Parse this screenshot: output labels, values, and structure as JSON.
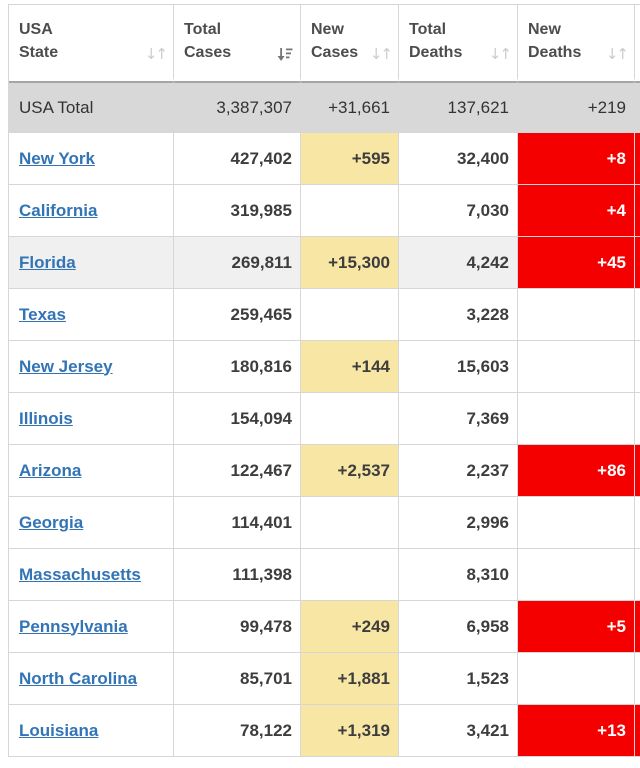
{
  "table": {
    "columns": [
      {
        "id": "state",
        "line1": "USA",
        "line2": "State",
        "sort": "inactive"
      },
      {
        "id": "total_cases",
        "line1": "Total",
        "line2": "Cases",
        "sort": "active-desc"
      },
      {
        "id": "new_cases",
        "line1": "New",
        "line2": "Cases",
        "sort": "inactive"
      },
      {
        "id": "total_deaths",
        "line1": "Total",
        "line2": "Deaths",
        "sort": "inactive"
      },
      {
        "id": "new_deaths",
        "line1": "New",
        "line2": "Deaths",
        "sort": "inactive"
      }
    ],
    "total_row": {
      "label": "USA Total",
      "total_cases": "3,387,307",
      "new_cases": "+31,661",
      "total_deaths": "137,621",
      "new_deaths": "+219"
    },
    "rows": [
      {
        "state": "New York",
        "total_cases": "427,402",
        "new_cases": "+595",
        "total_deaths": "32,400",
        "new_deaths": "+8",
        "striped": false
      },
      {
        "state": "California",
        "total_cases": "319,985",
        "new_cases": "",
        "total_deaths": "7,030",
        "new_deaths": "+4",
        "striped": false
      },
      {
        "state": "Florida",
        "total_cases": "269,811",
        "new_cases": "+15,300",
        "total_deaths": "4,242",
        "new_deaths": "+45",
        "striped": true
      },
      {
        "state": "Texas",
        "total_cases": "259,465",
        "new_cases": "",
        "total_deaths": "3,228",
        "new_deaths": "",
        "striped": false
      },
      {
        "state": "New Jersey",
        "total_cases": "180,816",
        "new_cases": "+144",
        "total_deaths": "15,603",
        "new_deaths": "",
        "striped": false
      },
      {
        "state": "Illinois",
        "total_cases": "154,094",
        "new_cases": "",
        "total_deaths": "7,369",
        "new_deaths": "",
        "striped": false
      },
      {
        "state": "Arizona",
        "total_cases": "122,467",
        "new_cases": "+2,537",
        "total_deaths": "2,237",
        "new_deaths": "+86",
        "striped": false
      },
      {
        "state": "Georgia",
        "total_cases": "114,401",
        "new_cases": "",
        "total_deaths": "2,996",
        "new_deaths": "",
        "striped": false
      },
      {
        "state": "Massachusetts",
        "total_cases": "111,398",
        "new_cases": "",
        "total_deaths": "8,310",
        "new_deaths": "",
        "striped": false
      },
      {
        "state": "Pennsylvania",
        "total_cases": "99,478",
        "new_cases": "+249",
        "total_deaths": "6,958",
        "new_deaths": "+5",
        "striped": false
      },
      {
        "state": "North Carolina",
        "total_cases": "85,701",
        "new_cases": "+1,881",
        "total_deaths": "1,523",
        "new_deaths": "",
        "striped": false
      },
      {
        "state": "Louisiana",
        "total_cases": "78,122",
        "new_cases": "+1,319",
        "total_deaths": "3,421",
        "new_deaths": "+13",
        "striped": false
      }
    ]
  },
  "icons": {
    "inactive_sort_glyph": "↓↑"
  },
  "colors": {
    "link_blue": "#3274B5",
    "highlight_yellow": "#F8E6A4",
    "highlight_red": "#F40000",
    "total_row_gray": "#D8D8D8",
    "total_row_top_border": "#A6A6A6",
    "striped_row_gray": "#F0F0F0",
    "grid_border": "#D7D7D7",
    "header_text": "#4D4D4D",
    "number_text": "#3D3D3D",
    "sort_icon_inactive": "#CCCCCC",
    "sort_icon_active": "#767676"
  }
}
